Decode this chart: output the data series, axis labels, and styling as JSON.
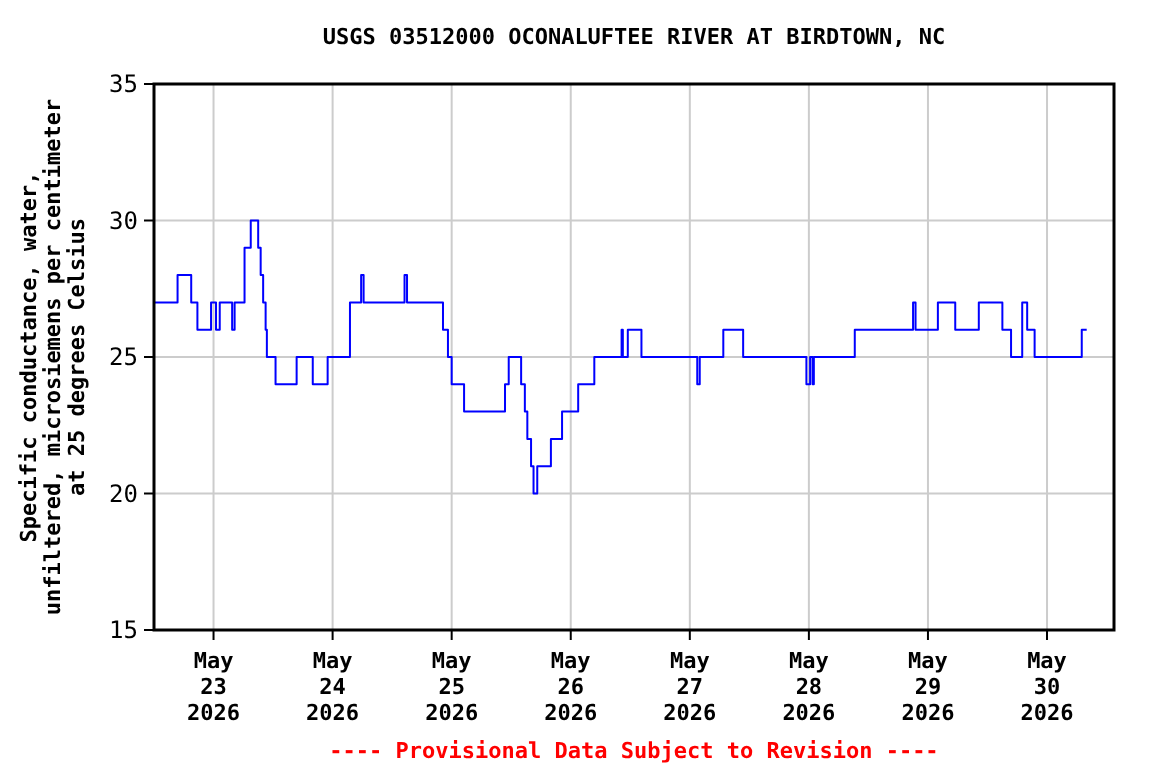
{
  "chart_data": {
    "type": "step",
    "title": "USGS 03512000 OCONALUFTEE RIVER AT BIRDTOWN, NC",
    "ylabel": "Specific conductance, water,\nunfiltered, microsiemens per centimeter\nat 25 degrees Celsius",
    "annotations": [
      "---- Provisional Data Subject to Revision ----"
    ],
    "xlim": [
      "2026-05-22T12:00",
      "2026-05-30T13:30"
    ],
    "xticks": [
      {
        "value": "2026-05-23",
        "label": "May\n23\n2026"
      },
      {
        "value": "2026-05-24",
        "label": "May\n24\n2026"
      },
      {
        "value": "2026-05-25",
        "label": "May\n25\n2026"
      },
      {
        "value": "2026-05-26",
        "label": "May\n26\n2026"
      },
      {
        "value": "2026-05-27",
        "label": "May\n27\n2026"
      },
      {
        "value": "2026-05-28",
        "label": "May\n28\n2026"
      },
      {
        "value": "2026-05-29",
        "label": "May\n29\n2026"
      },
      {
        "value": "2026-05-30",
        "label": "May\n30\n2026"
      }
    ],
    "ylim": [
      15,
      35
    ],
    "yticks": [
      15,
      20,
      25,
      30,
      35
    ],
    "grid": true,
    "marker": "none",
    "line_style": "solid",
    "series": [
      {
        "color": "#0000ff",
        "x": [
          "2026-05-22T12:00",
          "2026-05-22T16:45",
          "2026-05-22T19:30",
          "2026-05-22T20:45",
          "2026-05-22T23:30",
          "2026-05-23T00:30",
          "2026-05-23T01:15",
          "2026-05-23T03:45",
          "2026-05-23T04:15",
          "2026-05-23T06:15",
          "2026-05-23T07:30",
          "2026-05-23T09:00",
          "2026-05-23T09:30",
          "2026-05-23T10:00",
          "2026-05-23T10:30",
          "2026-05-23T10:45",
          "2026-05-23T12:30",
          "2026-05-23T16:45",
          "2026-05-23T20:00",
          "2026-05-23T23:00",
          "2026-05-24T03:30",
          "2026-05-24T05:45",
          "2026-05-24T06:15",
          "2026-05-24T14:30",
          "2026-05-24T15:00",
          "2026-05-24T22:15",
          "2026-05-24T23:15",
          "2026-05-25T00:00",
          "2026-05-25T02:30",
          "2026-05-25T10:45",
          "2026-05-25T11:30",
          "2026-05-25T14:00",
          "2026-05-25T14:45",
          "2026-05-25T15:15",
          "2026-05-25T16:00",
          "2026-05-25T16:30",
          "2026-05-25T17:15",
          "2026-05-25T20:00",
          "2026-05-25T22:15",
          "2026-05-26T01:30",
          "2026-05-26T04:45",
          "2026-05-26T10:15",
          "2026-05-26T10:30",
          "2026-05-26T11:30",
          "2026-05-26T14:15",
          "2026-05-27T01:30",
          "2026-05-27T02:00",
          "2026-05-27T06:45",
          "2026-05-27T10:45",
          "2026-05-27T23:30",
          "2026-05-28T00:15",
          "2026-05-28T00:45",
          "2026-05-28T01:00",
          "2026-05-28T09:15",
          "2026-05-28T21:00",
          "2026-05-28T21:30",
          "2026-05-29T02:00",
          "2026-05-29T05:30",
          "2026-05-29T10:15",
          "2026-05-29T15:00",
          "2026-05-29T16:45",
          "2026-05-29T19:00",
          "2026-05-29T20:00",
          "2026-05-29T21:30",
          "2026-05-30T07:00",
          "2026-05-30T08:00"
        ],
        "values": [
          27,
          28,
          27,
          26,
          27,
          26,
          27,
          26,
          27,
          29,
          30,
          29,
          28,
          27,
          26,
          25,
          24,
          25,
          24,
          25,
          27,
          28,
          27,
          28,
          27,
          26,
          25,
          24,
          23,
          24,
          25,
          24,
          23,
          22,
          21,
          20,
          21,
          22,
          23,
          24,
          25,
          26,
          25,
          26,
          25,
          24,
          25,
          26,
          25,
          24,
          25,
          24,
          25,
          26,
          27,
          26,
          27,
          26,
          27,
          26,
          25,
          27,
          26,
          25,
          26,
          26
        ]
      }
    ]
  }
}
